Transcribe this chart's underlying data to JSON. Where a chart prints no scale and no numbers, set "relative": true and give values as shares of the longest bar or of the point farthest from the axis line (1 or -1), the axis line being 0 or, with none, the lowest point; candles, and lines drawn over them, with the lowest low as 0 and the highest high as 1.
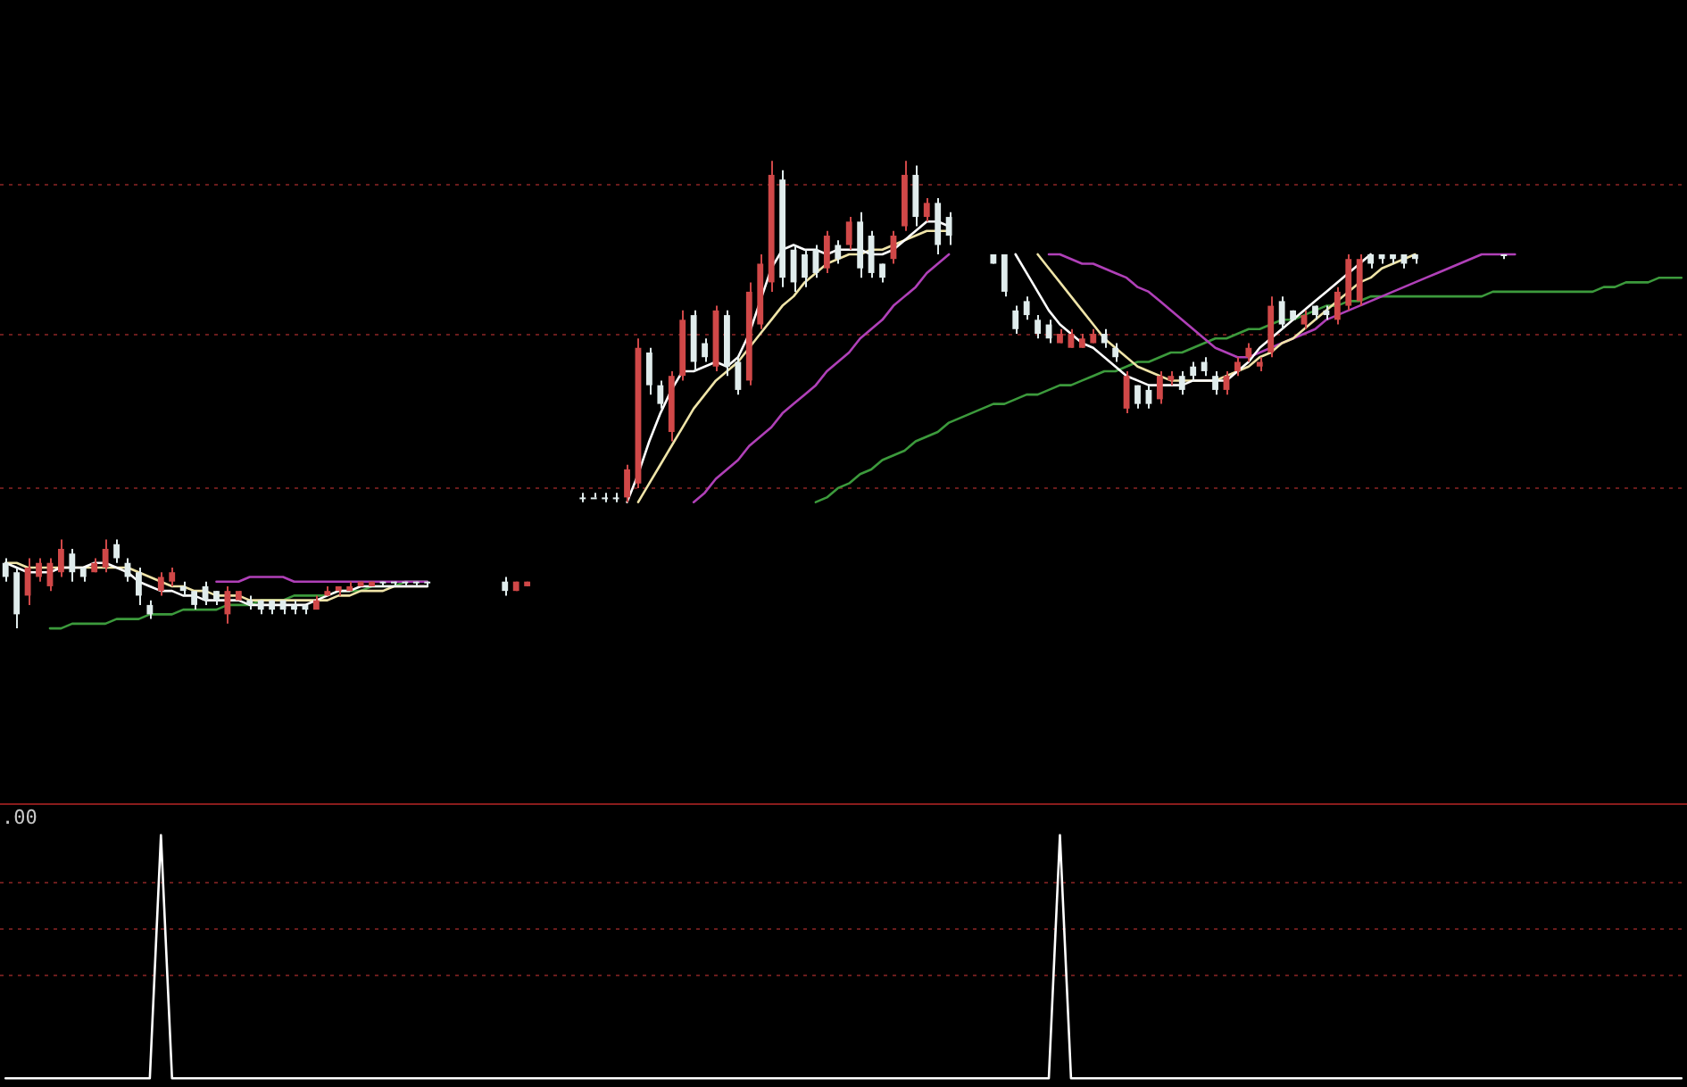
{
  "chart_data": [
    {
      "type": "candlestick",
      "relative": true,
      "ref_lines": [
        {
          "axis": "y",
          "value": 0.95,
          "color": "#6a1c1c",
          "line_style": "dotted"
        },
        {
          "axis": "y",
          "value": 0.63,
          "color": "#6a1c1c",
          "line_style": "dotted"
        },
        {
          "axis": "y",
          "value": 0.3,
          "color": "#6a1c1c",
          "line_style": "dotted"
        }
      ],
      "categories": [
        null,
        null,
        null,
        null,
        null,
        null,
        null,
        null,
        null,
        null,
        null,
        null,
        null,
        null,
        null,
        null,
        null,
        null,
        null,
        null,
        null,
        null,
        null,
        null,
        null,
        null,
        null,
        null,
        null,
        null,
        null,
        null,
        null,
        null,
        null,
        null,
        null,
        null,
        null,
        null,
        null,
        null,
        null,
        null,
        null,
        null,
        null,
        null,
        null,
        null,
        null,
        null,
        null,
        null,
        null,
        null,
        null,
        null,
        null,
        null,
        null,
        null,
        null,
        null,
        null,
        null,
        null,
        null,
        null,
        null,
        null,
        null,
        null,
        null,
        null,
        null,
        null,
        null,
        null,
        null,
        null,
        null,
        null,
        null,
        null,
        null,
        null,
        null,
        null,
        null,
        null,
        null,
        null,
        null,
        null,
        null,
        null,
        null,
        null,
        null,
        null,
        null,
        null,
        null,
        null,
        null,
        null,
        null,
        null,
        null,
        null,
        null,
        null,
        null,
        null,
        null,
        null,
        null,
        null,
        null,
        null,
        null,
        null,
        null,
        null,
        null,
        null,
        null,
        null,
        null,
        null,
        null,
        null,
        null,
        null,
        null,
        null,
        null,
        null,
        null,
        null,
        null,
        null,
        null,
        null,
        null,
        null,
        null,
        null,
        null,
        null,
        null
      ],
      "ohlc": [
        [
          0.14,
          0.15,
          0.1,
          0.11
        ],
        [
          0.12,
          0.13,
          0.0,
          0.03
        ],
        [
          0.07,
          0.15,
          0.05,
          0.13
        ],
        [
          0.11,
          0.15,
          0.1,
          0.14
        ],
        [
          0.09,
          0.15,
          0.08,
          0.14
        ],
        [
          0.12,
          0.19,
          0.11,
          0.17
        ],
        [
          0.16,
          0.17,
          0.1,
          0.12
        ],
        [
          0.13,
          0.13,
          0.1,
          0.11
        ],
        [
          0.12,
          0.15,
          0.12,
          0.14
        ],
        [
          0.13,
          0.19,
          0.12,
          0.17
        ],
        [
          0.18,
          0.19,
          0.14,
          0.15
        ],
        [
          0.14,
          0.15,
          0.1,
          0.11
        ],
        [
          0.12,
          0.13,
          0.05,
          0.07
        ],
        [
          0.05,
          0.06,
          0.02,
          0.03
        ],
        [
          0.08,
          0.12,
          0.07,
          0.11
        ],
        [
          0.1,
          0.13,
          0.09,
          0.12
        ],
        [
          0.09,
          0.1,
          0.07,
          0.08
        ],
        [
          0.08,
          0.08,
          0.04,
          0.05
        ],
        [
          0.09,
          0.1,
          0.05,
          0.06
        ],
        [
          0.08,
          0.08,
          0.05,
          0.06
        ],
        [
          0.03,
          0.09,
          0.01,
          0.08
        ],
        [
          0.06,
          0.08,
          0.06,
          0.08
        ],
        [
          0.06,
          0.07,
          0.04,
          0.05
        ],
        [
          0.06,
          0.06,
          0.03,
          0.04
        ],
        [
          0.06,
          0.06,
          0.03,
          0.04
        ],
        [
          0.06,
          0.06,
          0.03,
          0.04
        ],
        [
          0.05,
          0.06,
          0.03,
          0.04
        ],
        [
          0.05,
          0.05,
          0.03,
          0.04
        ],
        [
          0.04,
          0.07,
          0.04,
          0.06
        ],
        [
          0.07,
          0.09,
          0.07,
          0.08
        ],
        [
          0.08,
          0.09,
          0.07,
          0.09
        ],
        [
          0.08,
          0.1,
          0.08,
          0.09
        ],
        [
          0.09,
          0.1,
          0.09,
          0.1
        ],
        [
          0.09,
          0.1,
          0.09,
          0.1
        ],
        [
          0.1,
          0.1,
          0.09,
          0.1
        ],
        [
          0.1,
          0.1,
          0.09,
          0.1
        ],
        [
          0.1,
          0.1,
          0.09,
          0.1
        ],
        [
          0.1,
          0.1,
          0.09,
          0.1
        ],
        [
          0.1,
          0.1,
          0.09,
          0.1
        ],
        null,
        null,
        null,
        null,
        null,
        null,
        [
          0.1,
          0.11,
          0.07,
          0.08
        ],
        [
          0.08,
          0.1,
          0.08,
          0.1
        ],
        [
          0.09,
          0.1,
          0.09,
          0.1
        ],
        null,
        null,
        null,
        null,
        [
          0.28,
          0.29,
          0.27,
          0.28
        ],
        [
          0.28,
          0.29,
          0.28,
          0.28
        ],
        [
          0.28,
          0.29,
          0.27,
          0.28
        ],
        [
          0.28,
          0.29,
          0.27,
          0.28
        ],
        [
          0.28,
          0.35,
          0.27,
          0.34
        ],
        [
          0.31,
          0.62,
          0.3,
          0.6
        ],
        [
          0.59,
          0.6,
          0.5,
          0.52
        ],
        [
          0.52,
          0.53,
          0.47,
          0.48
        ],
        [
          0.42,
          0.55,
          0.4,
          0.54
        ],
        [
          0.54,
          0.68,
          0.53,
          0.66
        ],
        [
          0.67,
          0.68,
          0.55,
          0.57
        ],
        [
          0.61,
          0.62,
          0.57,
          0.58
        ],
        [
          0.56,
          0.69,
          0.55,
          0.68
        ],
        [
          0.67,
          0.68,
          0.54,
          0.56
        ],
        [
          0.57,
          0.58,
          0.5,
          0.51
        ],
        [
          0.53,
          0.74,
          0.52,
          0.72
        ],
        [
          0.65,
          0.8,
          0.64,
          0.78
        ],
        [
          0.74,
          1.0,
          0.72,
          0.97
        ],
        [
          0.96,
          0.98,
          0.73,
          0.75
        ],
        [
          0.81,
          0.82,
          0.72,
          0.74
        ],
        [
          0.8,
          0.81,
          0.73,
          0.75
        ],
        [
          0.81,
          0.82,
          0.75,
          0.76
        ],
        [
          0.77,
          0.85,
          0.76,
          0.84
        ],
        [
          0.82,
          0.83,
          0.78,
          0.79
        ],
        [
          0.82,
          0.88,
          0.81,
          0.87
        ],
        [
          0.87,
          0.89,
          0.75,
          0.77
        ],
        [
          0.84,
          0.85,
          0.75,
          0.76
        ],
        [
          0.78,
          0.78,
          0.74,
          0.75
        ],
        [
          0.79,
          0.85,
          0.78,
          0.84
        ],
        [
          0.86,
          1.0,
          0.85,
          0.97
        ],
        [
          0.97,
          0.99,
          0.86,
          0.88
        ],
        [
          0.88,
          0.92,
          0.87,
          0.91
        ],
        [
          0.91,
          0.92,
          0.8,
          0.82
        ],
        [
          0.88,
          0.89,
          0.82,
          0.84
        ],
        null,
        null,
        null,
        [
          0.8,
          0.8,
          0.78,
          0.78
        ],
        [
          0.8,
          0.8,
          0.71,
          0.72
        ],
        [
          0.68,
          0.69,
          0.63,
          0.64
        ],
        [
          0.7,
          0.71,
          0.66,
          0.67
        ],
        [
          0.66,
          0.67,
          0.62,
          0.63
        ],
        [
          0.65,
          0.66,
          0.61,
          0.62
        ],
        [
          0.61,
          0.64,
          0.61,
          0.63
        ],
        [
          0.6,
          0.64,
          0.6,
          0.63
        ],
        [
          0.6,
          0.63,
          0.6,
          0.62
        ],
        [
          0.61,
          0.64,
          0.61,
          0.63
        ],
        [
          0.63,
          0.64,
          0.6,
          0.61
        ],
        [
          0.6,
          0.61,
          0.57,
          0.58
        ],
        [
          0.47,
          0.55,
          0.46,
          0.54
        ],
        [
          0.52,
          0.52,
          0.47,
          0.48
        ],
        [
          0.51,
          0.52,
          0.47,
          0.48
        ],
        [
          0.49,
          0.55,
          0.48,
          0.54
        ],
        [
          0.53,
          0.55,
          0.52,
          0.54
        ],
        [
          0.54,
          0.55,
          0.5,
          0.51
        ],
        [
          0.56,
          0.57,
          0.53,
          0.54
        ],
        [
          0.57,
          0.58,
          0.54,
          0.55
        ],
        [
          0.54,
          0.55,
          0.5,
          0.51
        ],
        [
          0.51,
          0.55,
          0.5,
          0.54
        ],
        [
          0.55,
          0.58,
          0.54,
          0.57
        ],
        [
          0.58,
          0.61,
          0.57,
          0.6
        ],
        [
          0.56,
          0.58,
          0.55,
          0.57
        ],
        [
          0.59,
          0.71,
          0.58,
          0.69
        ],
        [
          0.7,
          0.71,
          0.64,
          0.65
        ],
        [
          0.68,
          0.68,
          0.66,
          0.66
        ],
        [
          0.65,
          0.68,
          0.64,
          0.67
        ],
        [
          0.69,
          0.69,
          0.66,
          0.67
        ],
        [
          0.68,
          0.69,
          0.66,
          0.67
        ],
        [
          0.66,
          0.73,
          0.65,
          0.72
        ],
        [
          0.69,
          0.8,
          0.68,
          0.79
        ],
        [
          0.7,
          0.8,
          0.69,
          0.79
        ],
        [
          0.8,
          0.8,
          0.77,
          0.78
        ],
        [
          0.8,
          0.8,
          0.78,
          0.79
        ],
        [
          0.8,
          0.8,
          0.78,
          0.79
        ],
        [
          0.8,
          0.8,
          0.77,
          0.78
        ],
        [
          0.8,
          0.8,
          0.78,
          0.79
        ],
        null,
        null,
        null,
        null,
        null,
        null,
        null,
        [
          0.8,
          0.8,
          0.79,
          0.8
        ],
        null,
        null,
        null,
        null,
        null,
        null,
        null,
        null,
        null,
        null,
        null,
        null,
        null,
        null,
        null,
        null
      ],
      "colors": [
        "#e0ecec",
        "#e0ecec",
        "#d04848",
        "#d04848",
        "#d04848",
        "#d04848",
        "#e0ecec",
        "#e0ecec",
        "#d04848",
        "#d04848",
        "#e0ecec",
        "#e0ecec",
        "#e0ecec",
        "#e0ecec",
        "#d04848",
        "#d04848",
        "#e0ecec",
        "#e0ecec",
        "#e0ecec",
        "#e0ecec",
        "#d04848",
        "#d04848",
        "#e0ecec",
        "#e0ecec",
        "#e0ecec",
        "#e0ecec",
        "#e0ecec",
        "#e0ecec",
        "#d04848",
        "#d04848",
        "#d04848",
        "#d04848",
        "#d04848",
        "#d04848",
        "#e0ecec",
        "#e0ecec",
        "#e0ecec",
        "#e0ecec",
        "#e0ecec",
        null,
        null,
        null,
        null,
        null,
        null,
        "#e0ecec",
        "#d04848",
        "#d04848",
        null,
        null,
        null,
        null,
        "#e0ecec",
        "#e0ecec",
        "#e0ecec",
        "#e0ecec",
        "#d04848",
        "#d04848",
        "#e0ecec",
        "#e0ecec",
        "#d04848",
        "#d04848",
        "#e0ecec",
        "#e0ecec",
        "#d04848",
        "#e0ecec",
        "#e0ecec",
        "#d04848",
        "#d04848",
        "#d04848",
        "#e0ecec",
        "#e0ecec",
        "#e0ecec",
        "#e0ecec",
        "#d04848",
        "#e0ecec",
        "#d04848",
        "#e0ecec",
        "#e0ecec",
        "#e0ecec",
        "#d04848",
        "#d04848",
        "#e0ecec",
        "#d04848",
        "#e0ecec",
        "#e0ecec",
        null,
        null,
        null,
        "#e0ecec",
        "#e0ecec",
        "#e0ecec",
        "#e0ecec",
        "#e0ecec",
        "#e0ecec",
        "#d04848",
        "#d04848",
        "#d04848",
        "#d04848",
        "#e0ecec",
        "#e0ecec",
        "#d04848",
        "#e0ecec",
        "#e0ecec",
        "#d04848",
        "#d04848",
        "#e0ecec",
        "#e0ecec",
        "#e0ecec",
        "#e0ecec",
        "#d04848",
        "#d04848",
        "#d04848",
        "#d04848",
        "#d04848",
        "#e0ecec",
        "#e0ecec",
        "#d04848",
        "#e0ecec",
        "#e0ecec",
        "#d04848",
        "#d04848",
        "#d04848",
        "#e0ecec",
        "#e0ecec",
        "#e0ecec",
        "#e0ecec",
        "#e0ecec",
        null,
        null,
        null,
        null,
        null,
        null,
        null,
        "#e0ecec",
        null,
        null,
        null,
        null,
        null,
        null,
        null,
        null,
        null,
        null,
        null,
        null,
        null,
        null,
        null,
        null
      ],
      "series": [
        {
          "type": "line",
          "color": "#ffffff",
          "values": [
            0.14,
            0.13,
            0.12,
            0.12,
            0.12,
            0.13,
            0.13,
            0.13,
            0.14,
            0.14,
            0.13,
            0.12,
            0.1,
            0.09,
            0.08,
            0.08,
            0.07,
            0.07,
            0.06,
            0.06,
            0.06,
            0.06,
            0.05,
            0.05,
            0.05,
            0.05,
            0.05,
            0.05,
            0.06,
            0.07,
            0.08,
            0.08,
            0.09,
            0.09,
            0.09,
            0.09,
            0.09,
            0.09,
            0.09,
            null,
            null,
            null,
            null,
            null,
            null,
            null,
            null,
            null,
            null,
            null,
            null,
            null,
            null,
            null,
            null,
            null,
            0.27,
            0.33,
            0.4,
            0.46,
            0.51,
            0.55,
            0.55,
            0.56,
            0.57,
            0.56,
            0.58,
            0.63,
            0.7,
            0.77,
            0.81,
            0.82,
            0.81,
            0.81,
            0.8,
            0.81,
            0.81,
            0.81,
            0.8,
            0.8,
            0.81,
            0.83,
            0.85,
            0.87,
            0.87,
            0.86,
            null,
            null,
            null,
            null,
            null,
            0.8,
            0.76,
            0.72,
            0.68,
            0.65,
            0.63,
            0.61,
            0.6,
            0.58,
            0.56,
            0.54,
            0.53,
            0.52,
            0.52,
            0.52,
            0.52,
            0.53,
            0.53,
            0.53,
            0.53,
            0.55,
            0.57,
            0.6,
            0.62,
            0.64,
            0.66,
            0.68,
            0.7,
            0.72,
            0.74,
            0.76,
            0.78,
            0.8,
            null,
            null,
            null,
            null,
            null,
            null,
            null,
            null,
            null,
            null,
            null,
            null,
            null,
            null,
            null,
            null,
            null,
            null,
            null,
            null,
            null,
            null,
            null,
            null,
            null,
            null,
            null,
            null
          ]
        },
        {
          "type": "line",
          "color": "#efe4a8",
          "values": [
            0.14,
            0.14,
            0.13,
            0.13,
            0.13,
            0.13,
            0.13,
            0.13,
            0.13,
            0.13,
            0.13,
            0.13,
            0.12,
            0.11,
            0.1,
            0.09,
            0.09,
            0.08,
            0.08,
            0.07,
            0.07,
            0.07,
            0.06,
            0.06,
            0.06,
            0.06,
            0.06,
            0.06,
            0.06,
            0.06,
            0.07,
            0.07,
            0.08,
            0.08,
            0.08,
            0.09,
            0.09,
            0.09,
            0.09,
            null,
            null,
            null,
            null,
            null,
            null,
            null,
            null,
            null,
            null,
            null,
            null,
            null,
            null,
            null,
            null,
            null,
            null,
            0.27,
            0.31,
            0.35,
            0.39,
            0.43,
            0.47,
            0.5,
            0.53,
            0.55,
            0.57,
            0.6,
            0.63,
            0.66,
            0.69,
            0.71,
            0.74,
            0.76,
            0.78,
            0.79,
            0.8,
            0.8,
            0.81,
            0.81,
            0.82,
            0.83,
            0.84,
            0.85,
            0.85,
            0.85,
            null,
            null,
            null,
            null,
            null,
            null,
            null,
            0.8,
            0.77,
            0.74,
            0.71,
            0.68,
            0.65,
            0.62,
            0.6,
            0.58,
            0.56,
            0.55,
            0.54,
            0.53,
            0.53,
            0.53,
            0.53,
            0.53,
            0.54,
            0.55,
            0.56,
            0.58,
            0.59,
            0.61,
            0.62,
            0.64,
            0.66,
            0.68,
            0.7,
            0.72,
            0.74,
            0.75,
            0.77,
            0.78,
            0.79,
            0.8,
            null,
            null,
            null,
            null,
            null,
            null,
            null,
            null,
            null,
            null,
            null,
            null,
            null,
            null,
            null,
            null,
            null,
            null,
            null,
            null,
            null,
            null,
            null,
            null
          ]
        },
        {
          "type": "line",
          "color": "#b040b8",
          "values": [
            null,
            null,
            null,
            null,
            null,
            null,
            null,
            null,
            null,
            null,
            null,
            null,
            null,
            null,
            null,
            null,
            null,
            null,
            null,
            0.1,
            0.1,
            0.1,
            0.11,
            0.11,
            0.11,
            0.11,
            0.1,
            0.1,
            0.1,
            0.1,
            0.1,
            0.1,
            0.1,
            0.1,
            0.1,
            0.1,
            0.1,
            0.1,
            0.1,
            null,
            null,
            null,
            null,
            null,
            null,
            null,
            null,
            null,
            null,
            null,
            null,
            null,
            null,
            null,
            null,
            null,
            null,
            null,
            null,
            null,
            null,
            null,
            0.27,
            0.29,
            0.32,
            0.34,
            0.36,
            0.39,
            0.41,
            0.43,
            0.46,
            0.48,
            0.5,
            0.52,
            0.55,
            0.57,
            0.59,
            0.62,
            0.64,
            0.66,
            0.69,
            0.71,
            0.73,
            0.76,
            0.78,
            0.8,
            null,
            null,
            null,
            null,
            null,
            null,
            null,
            null,
            0.8,
            0.8,
            0.79,
            0.78,
            0.78,
            0.77,
            0.76,
            0.75,
            0.73,
            0.72,
            0.7,
            0.68,
            0.66,
            0.64,
            0.62,
            0.6,
            0.59,
            0.58,
            0.58,
            0.59,
            0.6,
            0.61,
            0.62,
            0.63,
            0.64,
            0.66,
            0.67,
            0.68,
            0.69,
            0.7,
            0.71,
            0.72,
            0.73,
            0.74,
            0.75,
            0.76,
            0.77,
            0.78,
            0.79,
            0.8,
            0.8,
            0.8,
            0.8,
            null,
            null,
            null,
            null,
            null,
            null,
            null,
            null,
            null,
            null,
            null,
            null,
            null,
            null,
            null
          ]
        },
        {
          "type": "line",
          "color": "#3c9a3c",
          "values": [
            null,
            null,
            null,
            null,
            0.0,
            0.0,
            0.01,
            0.01,
            0.01,
            0.01,
            0.02,
            0.02,
            0.02,
            0.03,
            0.03,
            0.03,
            0.04,
            0.04,
            0.04,
            0.04,
            0.05,
            0.05,
            0.05,
            0.06,
            0.06,
            0.06,
            0.07,
            0.07,
            0.07,
            0.07,
            0.08,
            0.08,
            0.08,
            0.09,
            0.09,
            0.09,
            0.1,
            0.1,
            0.1,
            null,
            null,
            null,
            null,
            null,
            null,
            null,
            null,
            null,
            null,
            null,
            null,
            null,
            null,
            null,
            null,
            null,
            null,
            null,
            null,
            null,
            null,
            null,
            null,
            null,
            null,
            null,
            null,
            null,
            null,
            null,
            null,
            null,
            null,
            0.27,
            0.28,
            0.3,
            0.31,
            0.33,
            0.34,
            0.36,
            0.37,
            0.38,
            0.4,
            0.41,
            0.42,
            0.44,
            0.45,
            0.46,
            0.47,
            0.48,
            0.48,
            0.49,
            0.5,
            0.5,
            0.51,
            0.52,
            0.52,
            0.53,
            0.54,
            0.55,
            0.55,
            0.56,
            0.57,
            0.57,
            0.58,
            0.59,
            0.59,
            0.6,
            0.61,
            0.62,
            0.62,
            0.63,
            0.64,
            0.64,
            0.65,
            0.66,
            0.66,
            0.67,
            0.68,
            0.69,
            0.69,
            0.7,
            0.7,
            0.71,
            0.71,
            0.71,
            0.71,
            0.71,
            0.71,
            0.71,
            0.71,
            0.71,
            0.71,
            0.71,
            0.72,
            0.72,
            0.72,
            0.72,
            0.72,
            0.72,
            0.72,
            0.72,
            0.72,
            0.72,
            0.73,
            0.73,
            0.74,
            0.74,
            0.74,
            0.75,
            0.75,
            0.75
          ]
        }
      ]
    },
    {
      "type": "line",
      "relative": true,
      "color": "#ffffff",
      "ref_lines": [
        {
          "axis": "y",
          "value": 0.81,
          "color": "#6a1c1c",
          "line_style": "dotted"
        },
        {
          "axis": "y",
          "value": 0.62,
          "color": "#6a1c1c",
          "line_style": "dotted"
        },
        {
          "axis": "y",
          "value": 0.43,
          "color": "#6a1c1c",
          "line_style": "dotted"
        }
      ],
      "categories": [
        null,
        null,
        null,
        null,
        null,
        null,
        null,
        null,
        null,
        null,
        null,
        null,
        null,
        null,
        null,
        null,
        null,
        null,
        null,
        null,
        null,
        null,
        null,
        null,
        null,
        null,
        null,
        null,
        null,
        null,
        null,
        null,
        null,
        null,
        null,
        null,
        null,
        null,
        null,
        null,
        null,
        null,
        null,
        null,
        null,
        null,
        null,
        null,
        null,
        null,
        null,
        null,
        null,
        null,
        null,
        null,
        null,
        null,
        null,
        null,
        null,
        null,
        null,
        null,
        null,
        null,
        null,
        null,
        null,
        null,
        null,
        null,
        null,
        null,
        null,
        null,
        null,
        null,
        null,
        null,
        null,
        null,
        null,
        null,
        null,
        null,
        null,
        null,
        null,
        null,
        null,
        null,
        null,
        null,
        null,
        null,
        null,
        null,
        null,
        null,
        null,
        null,
        null,
        null,
        null,
        null,
        null,
        null,
        null,
        null,
        null,
        null,
        null,
        null,
        null,
        null,
        null,
        null,
        null,
        null,
        null,
        null,
        null,
        null,
        null,
        null,
        null,
        null,
        null,
        null,
        null,
        null,
        null,
        null,
        null,
        null,
        null,
        null,
        null,
        null,
        null,
        null,
        null,
        null,
        null,
        null,
        null,
        null,
        null,
        null,
        null,
        null
      ],
      "values": [
        0,
        0,
        0,
        0,
        0,
        0,
        0,
        0,
        0,
        0,
        0,
        0,
        0,
        0,
        1,
        0,
        0,
        0,
        0,
        0,
        0,
        0,
        0,
        0,
        0,
        0,
        0,
        0,
        0,
        0,
        0,
        0,
        0,
        0,
        0,
        0,
        0,
        0,
        0,
        0,
        0,
        0,
        0,
        0,
        0,
        0,
        0,
        0,
        0,
        0,
        0,
        0,
        0,
        0,
        0,
        0,
        0,
        0,
        0,
        0,
        0,
        0,
        0,
        0,
        0,
        0,
        0,
        0,
        0,
        0,
        0,
        0,
        0,
        0,
        0,
        0,
        0,
        0,
        0,
        0,
        0,
        0,
        0,
        0,
        0,
        0,
        0,
        0,
        0,
        0,
        0,
        0,
        0,
        0,
        0,
        1,
        0,
        0,
        0,
        0,
        0,
        0,
        0,
        0,
        0,
        0,
        0,
        0,
        0,
        0,
        0,
        0,
        0,
        0,
        0,
        0,
        0,
        0,
        0,
        0,
        0,
        0,
        0,
        0,
        0,
        0,
        0,
        0,
        0,
        0,
        0,
        0,
        0,
        0,
        0,
        0,
        0,
        0,
        0,
        0,
        0,
        0,
        0,
        0,
        0,
        0,
        0,
        0,
        0,
        0,
        0,
        0
      ],
      "annotations": [
        ".00"
      ]
    }
  ]
}
